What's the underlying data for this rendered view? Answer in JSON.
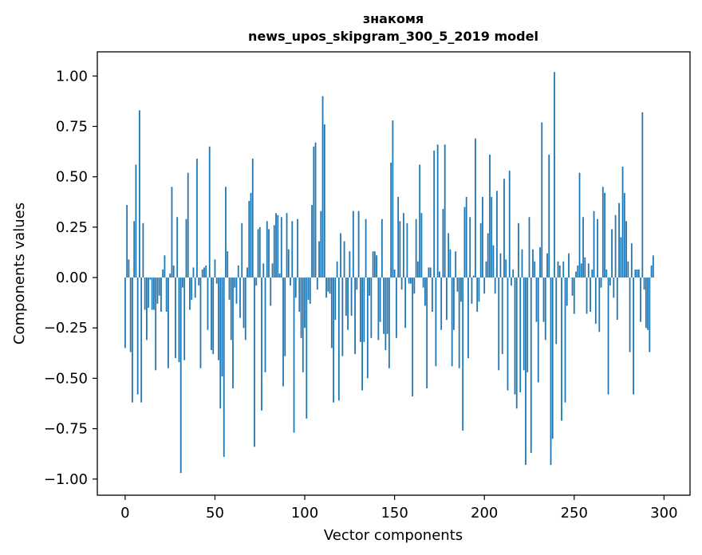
{
  "chart_data": {
    "type": "bar",
    "title": "знакомя",
    "subtitle": "news_upos_skipgram_300_5_2019 model",
    "xlabel": "Vector components",
    "ylabel": "Components values",
    "xlim": [
      -15.5,
      314.5
    ],
    "ylim": [
      -1.08,
      1.12
    ],
    "xticks": [
      0,
      50,
      100,
      150,
      200,
      250,
      300
    ],
    "xtick_labels": [
      "0",
      "50",
      "100",
      "150",
      "200",
      "250",
      "300"
    ],
    "yticks": [
      1.0,
      0.75,
      0.5,
      0.25,
      0.0,
      -0.25,
      -0.5,
      -0.75,
      -1.0
    ],
    "ytick_labels": [
      "1.00",
      "0.75",
      "0.50",
      "0.25",
      "0.00",
      "−0.25",
      "−0.50",
      "−0.75",
      "−1.00"
    ],
    "grid": false,
    "bar_color": "#1f77b4",
    "series": [
      {
        "values": [
          -0.35,
          0.36,
          0.09,
          -0.37,
          -0.62,
          0.28,
          0.56,
          -0.58,
          0.83,
          -0.62,
          0.27,
          -0.16,
          -0.31,
          -0.15,
          -0.01,
          -0.16,
          -0.16,
          -0.46,
          -0.13,
          -0.09,
          -0.17,
          0.04,
          0.11,
          -0.17,
          -0.45,
          0.02,
          0.45,
          0.06,
          -0.4,
          0.3,
          -0.42,
          -0.97,
          -0.05,
          -0.41,
          0.29,
          0.52,
          -0.16,
          -0.11,
          0.05,
          -0.1,
          0.59,
          -0.04,
          -0.45,
          0.04,
          0.05,
          0.06,
          -0.26,
          0.65,
          -0.36,
          -0.38,
          0.09,
          -0.03,
          -0.41,
          -0.65,
          -0.49,
          -0.89,
          0.45,
          0.13,
          -0.11,
          -0.31,
          -0.55,
          -0.05,
          -0.13,
          0.06,
          -0.2,
          0.27,
          -0.25,
          -0.31,
          0.05,
          0.38,
          0.42,
          0.59,
          -0.84,
          -0.04,
          0.24,
          0.25,
          -0.66,
          0.07,
          -0.47,
          0.28,
          0.24,
          -0.14,
          0.07,
          0.26,
          0.32,
          0.31,
          0.02,
          0.3,
          -0.54,
          -0.39,
          0.32,
          0.14,
          -0.04,
          0.28,
          -0.77,
          -0.1,
          0.29,
          -0.17,
          -0.3,
          -0.47,
          -0.25,
          -0.7,
          -0.11,
          -0.13,
          0.36,
          0.65,
          0.67,
          -0.06,
          0.18,
          0.33,
          0.9,
          0.76,
          -0.1,
          -0.07,
          -0.08,
          -0.35,
          -0.62,
          -0.21,
          0.08,
          -0.61,
          0.22,
          -0.39,
          0.18,
          -0.19,
          -0.26,
          0.13,
          -0.19,
          0.33,
          -0.38,
          -0.06,
          0.33,
          -0.32,
          -0.56,
          -0.32,
          0.29,
          -0.5,
          -0.09,
          -0.3,
          0.13,
          0.13,
          0.11,
          -0.31,
          -0.22,
          0.29,
          -0.28,
          -0.36,
          -0.28,
          -0.45,
          0.57,
          0.78,
          0.04,
          -0.3,
          0.4,
          0.28,
          -0.06,
          0.32,
          -0.25,
          0.27,
          -0.03,
          -0.03,
          -0.59,
          -0.08,
          0.29,
          0.08,
          0.56,
          0.32,
          -0.05,
          -0.14,
          -0.55,
          0.05,
          0.05,
          -0.17,
          0.63,
          -0.44,
          0.66,
          0.03,
          -0.26,
          0.34,
          0.66,
          -0.21,
          0.22,
          0.14,
          -0.44,
          -0.26,
          0.13,
          -0.07,
          -0.45,
          -0.12,
          -0.76,
          0.35,
          0.4,
          -0.4,
          0.3,
          -0.13,
          0.01,
          0.69,
          -0.17,
          -0.12,
          0.27,
          0.4,
          -0.08,
          0.08,
          0.22,
          0.61,
          0.4,
          0.16,
          -0.08,
          0.43,
          -0.46,
          0.12,
          -0.38,
          0.49,
          0.09,
          -0.56,
          0.53,
          -0.04,
          0.04,
          -0.58,
          -0.65,
          0.27,
          -0.57,
          0.14,
          -0.46,
          -0.93,
          -0.47,
          0.3,
          -0.87,
          0.14,
          0.08,
          -0.22,
          -0.52,
          0.15,
          0.77,
          -0.22,
          -0.31,
          0.12,
          0.61,
          -0.93,
          -0.8,
          1.02,
          -0.33,
          0.08,
          0.06,
          -0.71,
          0.08,
          -0.62,
          -0.14,
          0.12,
          0.0,
          -0.09,
          -0.18,
          0.03,
          0.06,
          0.52,
          0.07,
          0.3,
          0.1,
          -0.18,
          0.07,
          -0.17,
          0.04,
          0.33,
          -0.23,
          0.29,
          -0.27,
          -0.05,
          0.45,
          0.42,
          0.04,
          -0.58,
          -0.04,
          0.24,
          -0.1,
          0.31,
          -0.21,
          0.37,
          0.2,
          0.55,
          0.42,
          0.28,
          0.08,
          -0.37,
          0.17,
          -0.58,
          0.04,
          0.04,
          0.04,
          -0.22,
          0.82,
          -0.06,
          -0.25,
          -0.26,
          -0.37,
          0.06,
          0.11
        ]
      }
    ]
  }
}
